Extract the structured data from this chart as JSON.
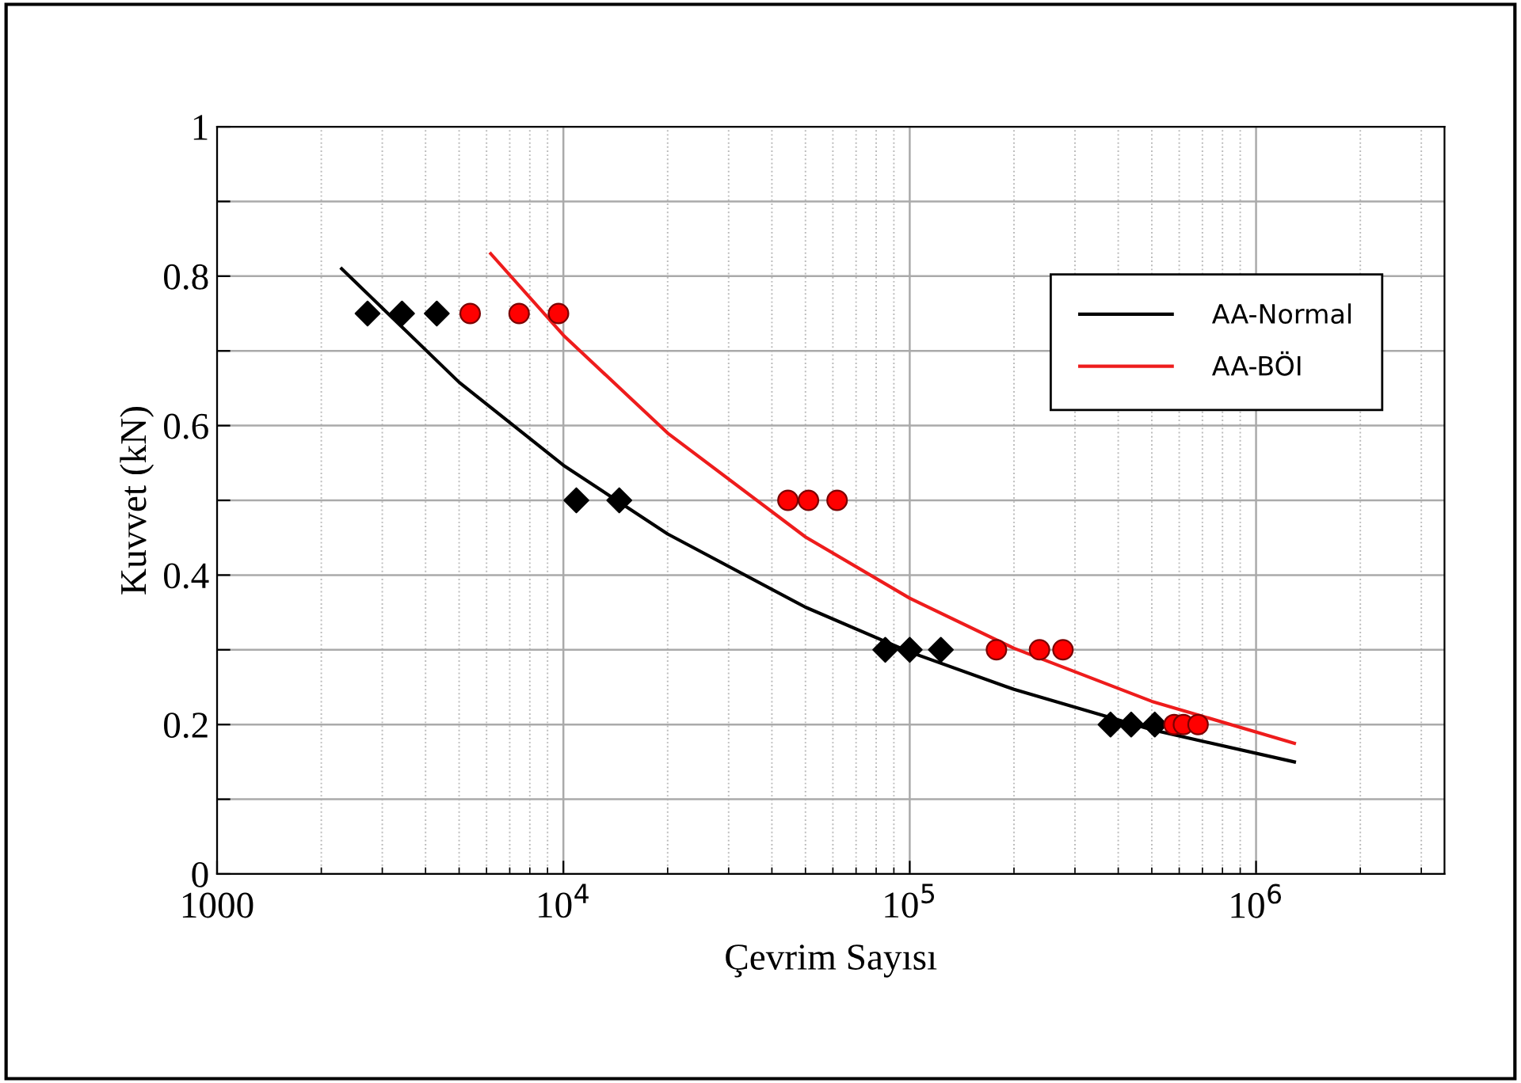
{
  "chart_data": {
    "type": "scatter",
    "xlabel": "Çevrim Sayısı",
    "ylabel": "Kuvvet (kN)",
    "log": "x",
    "xlim": [
      1000,
      3500000
    ],
    "xticks": [
      1000,
      {
        "value": 10000,
        "label": "10$^{4}$"
      },
      {
        "value": 100000,
        "label": "10$^{5}$"
      },
      {
        "value": 1000000,
        "label": "10$^{6}$"
      }
    ],
    "ylim": [
      0,
      1
    ],
    "yticks": [
      0,
      {
        "value": 0.1,
        "label": null
      },
      0.2,
      {
        "value": 0.3,
        "label": null
      },
      0.4,
      {
        "value": 0.5,
        "label": null
      },
      0.6,
      {
        "value": 0.7,
        "label": null
      },
      0.8,
      {
        "value": 0.9,
        "label": null
      },
      1
    ],
    "grid": true,
    "legend": "top right",
    "series": [
      {
        "marker": "diamond",
        "color": "#000000",
        "x": [
          2720,
          3420,
          4310,
          10900,
          14500,
          85000,
          100000,
          123000,
          380000,
          436000,
          510000
        ],
        "values": [
          0.75,
          0.75,
          0.75,
          0.5,
          0.5,
          0.3,
          0.3,
          0.3,
          0.2,
          0.2,
          0.2
        ]
      },
      {
        "marker": "circle",
        "color": "#ff0000",
        "x": [
          5380,
          7450,
          9680,
          44500,
          51000,
          61700,
          178000,
          237000,
          277000,
          580000,
          617000,
          680000
        ],
        "values": [
          0.75,
          0.75,
          0.75,
          0.5,
          0.5,
          0.5,
          0.3,
          0.3,
          0.3,
          0.2,
          0.2,
          0.2
        ]
      },
      {
        "type": "line",
        "name": "AA-Normal",
        "color": "#000000",
        "x": [
          2290,
          5000,
          10000,
          20000,
          50000,
          100000,
          200000,
          500000,
          1290000
        ],
        "values": [
          0.81,
          0.658,
          0.547,
          0.455,
          0.357,
          0.297,
          0.247,
          0.193,
          0.15
        ]
      },
      {
        "type": "line",
        "name": "AA-BÖI",
        "color": "#ee1c1c",
        "x": [
          6170,
          10000,
          20000,
          50000,
          100000,
          200000,
          500000,
          1290000
        ],
        "values": [
          0.83,
          0.721,
          0.59,
          0.451,
          0.369,
          0.302,
          0.231,
          0.175
        ]
      }
    ]
  }
}
